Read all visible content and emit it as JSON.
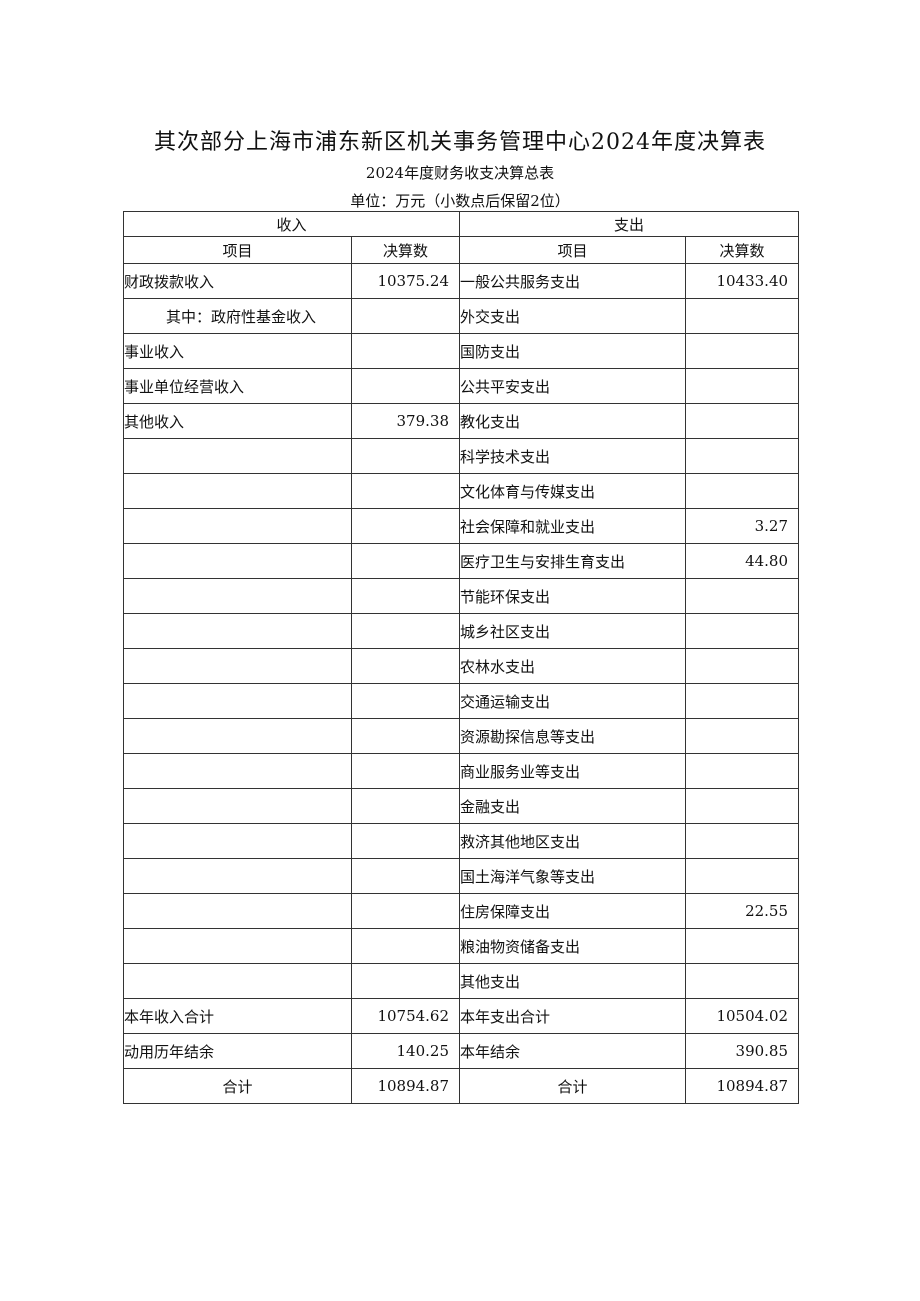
{
  "title": "其次部分上海市浦东新区机关事务管理中心2024年度决算表",
  "subtitle": "2024年度财务收支决算总表",
  "unit": "单位：万元（小数点后保留2位）",
  "header": {
    "income": "收入",
    "expense": "支出",
    "item": "项目",
    "amount": "决算数"
  },
  "rows": [
    {
      "in_item": "财政拨款收入",
      "in_amt": "10375.24",
      "ex_item": "一般公共服务支出",
      "ex_amt": "10433.40"
    },
    {
      "in_item": "其中：政府性基金收入",
      "in_amt": "",
      "ex_item": "外交支出",
      "ex_amt": "",
      "indent": true
    },
    {
      "in_item": "事业收入",
      "in_amt": "",
      "ex_item": "国防支出",
      "ex_amt": ""
    },
    {
      "in_item": "事业单位经营收入",
      "in_amt": "",
      "ex_item": "公共平安支出",
      "ex_amt": ""
    },
    {
      "in_item": "其他收入",
      "in_amt": "379.38",
      "ex_item": "教化支出",
      "ex_amt": ""
    },
    {
      "in_item": "",
      "in_amt": "",
      "ex_item": "科学技术支出",
      "ex_amt": ""
    },
    {
      "in_item": "",
      "in_amt": "",
      "ex_item": "文化体育与传媒支出",
      "ex_amt": ""
    },
    {
      "in_item": "",
      "in_amt": "",
      "ex_item": "社会保障和就业支出",
      "ex_amt": "3.27"
    },
    {
      "in_item": "",
      "in_amt": "",
      "ex_item": "医疗卫生与安排生育支出",
      "ex_amt": "44.80"
    },
    {
      "in_item": "",
      "in_amt": "",
      "ex_item": "节能环保支出",
      "ex_amt": ""
    },
    {
      "in_item": "",
      "in_amt": "",
      "ex_item": "城乡社区支出",
      "ex_amt": ""
    },
    {
      "in_item": "",
      "in_amt": "",
      "ex_item": "农林水支出",
      "ex_amt": ""
    },
    {
      "in_item": "",
      "in_amt": "",
      "ex_item": "交通运输支出",
      "ex_amt": ""
    },
    {
      "in_item": "",
      "in_amt": "",
      "ex_item": "资源勘探信息等支出",
      "ex_amt": ""
    },
    {
      "in_item": "",
      "in_amt": "",
      "ex_item": "商业服务业等支出",
      "ex_amt": ""
    },
    {
      "in_item": "",
      "in_amt": "",
      "ex_item": "金融支出",
      "ex_amt": ""
    },
    {
      "in_item": "",
      "in_amt": "",
      "ex_item": "救济其他地区支出",
      "ex_amt": ""
    },
    {
      "in_item": "",
      "in_amt": "",
      "ex_item": "国土海洋气象等支出",
      "ex_amt": ""
    },
    {
      "in_item": "",
      "in_amt": "",
      "ex_item": "住房保障支出",
      "ex_amt": "22.55"
    },
    {
      "in_item": "",
      "in_amt": "",
      "ex_item": "粮油物资储备支出",
      "ex_amt": ""
    },
    {
      "in_item": "",
      "in_amt": "",
      "ex_item": "其他支出",
      "ex_amt": ""
    },
    {
      "in_item": "本年收入合计",
      "in_amt": "10754.62",
      "ex_item": "本年支出合计",
      "ex_amt": "10504.02"
    },
    {
      "in_item": "动用历年结余",
      "in_amt": "140.25",
      "ex_item": "本年结余",
      "ex_amt": "390.85"
    },
    {
      "in_item": "合计",
      "in_amt": "10894.87",
      "ex_item": "合计",
      "ex_amt": "10894.87",
      "center": true
    }
  ]
}
